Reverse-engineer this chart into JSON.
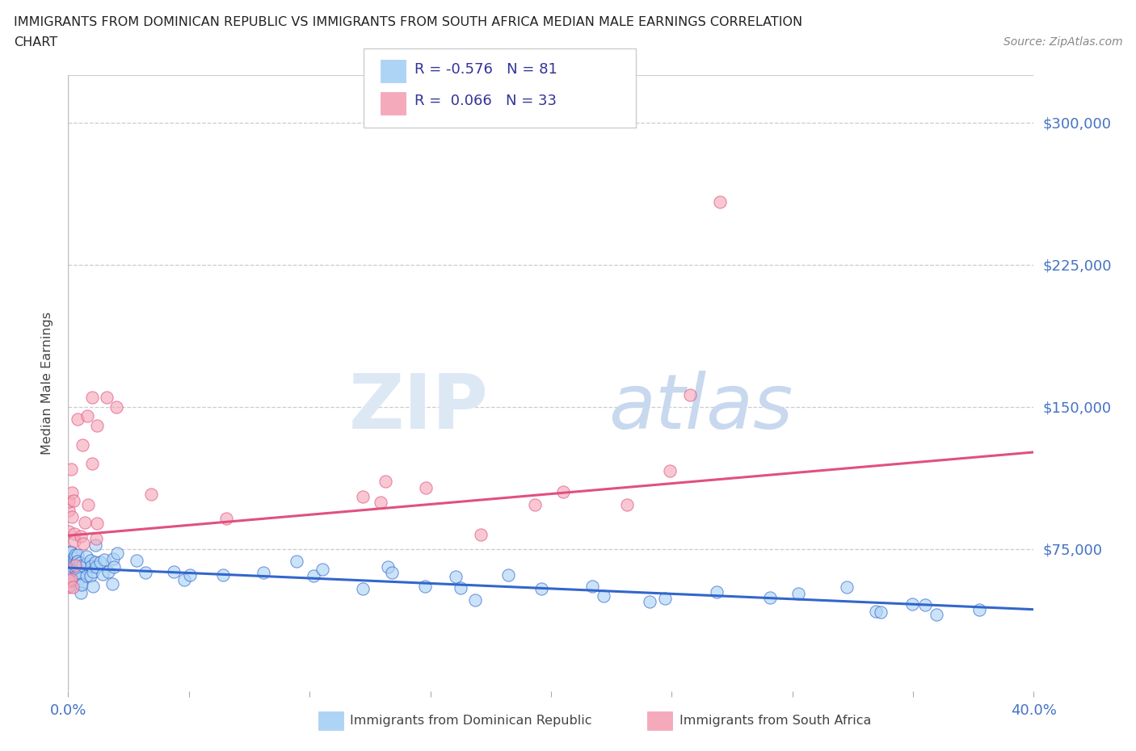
{
  "title_line1": "IMMIGRANTS FROM DOMINICAN REPUBLIC VS IMMIGRANTS FROM SOUTH AFRICA MEDIAN MALE EARNINGS CORRELATION",
  "title_line2": "CHART",
  "source_text": "Source: ZipAtlas.com",
  "ylabel": "Median Male Earnings",
  "xlim": [
    0.0,
    0.4
  ],
  "ylim": [
    0,
    325000
  ],
  "ytick_values": [
    75000,
    150000,
    225000,
    300000
  ],
  "ytick_labels": [
    "$75,000",
    "$150,000",
    "$225,000",
    "$300,000"
  ],
  "blue_color": "#AED4F5",
  "pink_color": "#F5AABB",
  "blue_line_color": "#3366CC",
  "pink_line_color": "#E05080",
  "R_blue": "-0.576",
  "N_blue": 81,
  "R_pink": "0.066",
  "N_pink": 33,
  "blue_intercept": 65000,
  "blue_slope": -55000,
  "pink_intercept": 82000,
  "pink_slope": 110000
}
